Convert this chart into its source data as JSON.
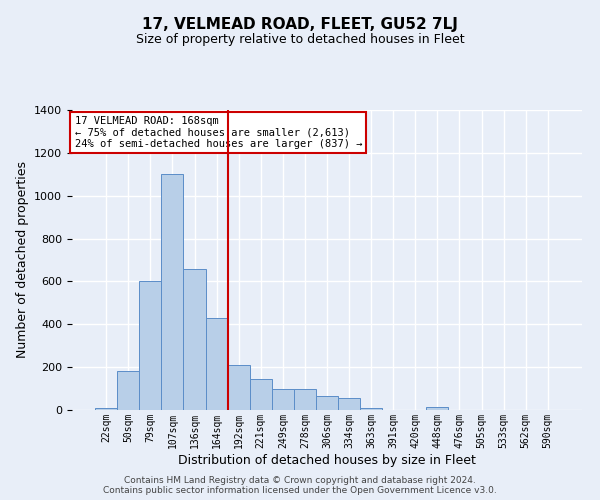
{
  "title": "17, VELMEAD ROAD, FLEET, GU52 7LJ",
  "subtitle": "Size of property relative to detached houses in Fleet",
  "xlabel": "Distribution of detached houses by size in Fleet",
  "ylabel": "Number of detached properties",
  "footer_line1": "Contains HM Land Registry data © Crown copyright and database right 2024.",
  "footer_line2": "Contains public sector information licensed under the Open Government Licence v3.0.",
  "annotation_line1": "17 VELMEAD ROAD: 168sqm",
  "annotation_line2": "← 75% of detached houses are smaller (2,613)",
  "annotation_line3": "24% of semi-detached houses are larger (837) →",
  "bar_color": "#b8cfe8",
  "bar_edge_color": "#5b8dc8",
  "vline_color": "#cc0000",
  "vline_pos": 5.5,
  "categories": [
    "22sqm",
    "50sqm",
    "79sqm",
    "107sqm",
    "136sqm",
    "164sqm",
    "192sqm",
    "221sqm",
    "249sqm",
    "278sqm",
    "306sqm",
    "334sqm",
    "363sqm",
    "391sqm",
    "420sqm",
    "448sqm",
    "476sqm",
    "505sqm",
    "533sqm",
    "562sqm",
    "590sqm"
  ],
  "values": [
    10,
    180,
    600,
    1100,
    660,
    430,
    210,
    145,
    100,
    100,
    65,
    55,
    10,
    0,
    0,
    15,
    0,
    0,
    0,
    0,
    0
  ],
  "ylim": [
    0,
    1400
  ],
  "yticks": [
    0,
    200,
    400,
    600,
    800,
    1000,
    1200,
    1400
  ],
  "background_color": "#e8eef8",
  "grid_color": "#ffffff",
  "annotation_box_color": "white",
  "annotation_box_edge_color": "#cc0000",
  "title_fontsize": 11,
  "subtitle_fontsize": 9,
  "xlabel_fontsize": 9,
  "ylabel_fontsize": 9,
  "tick_fontsize": 8,
  "annotation_fontsize": 7.5,
  "footer_fontsize": 6.5
}
